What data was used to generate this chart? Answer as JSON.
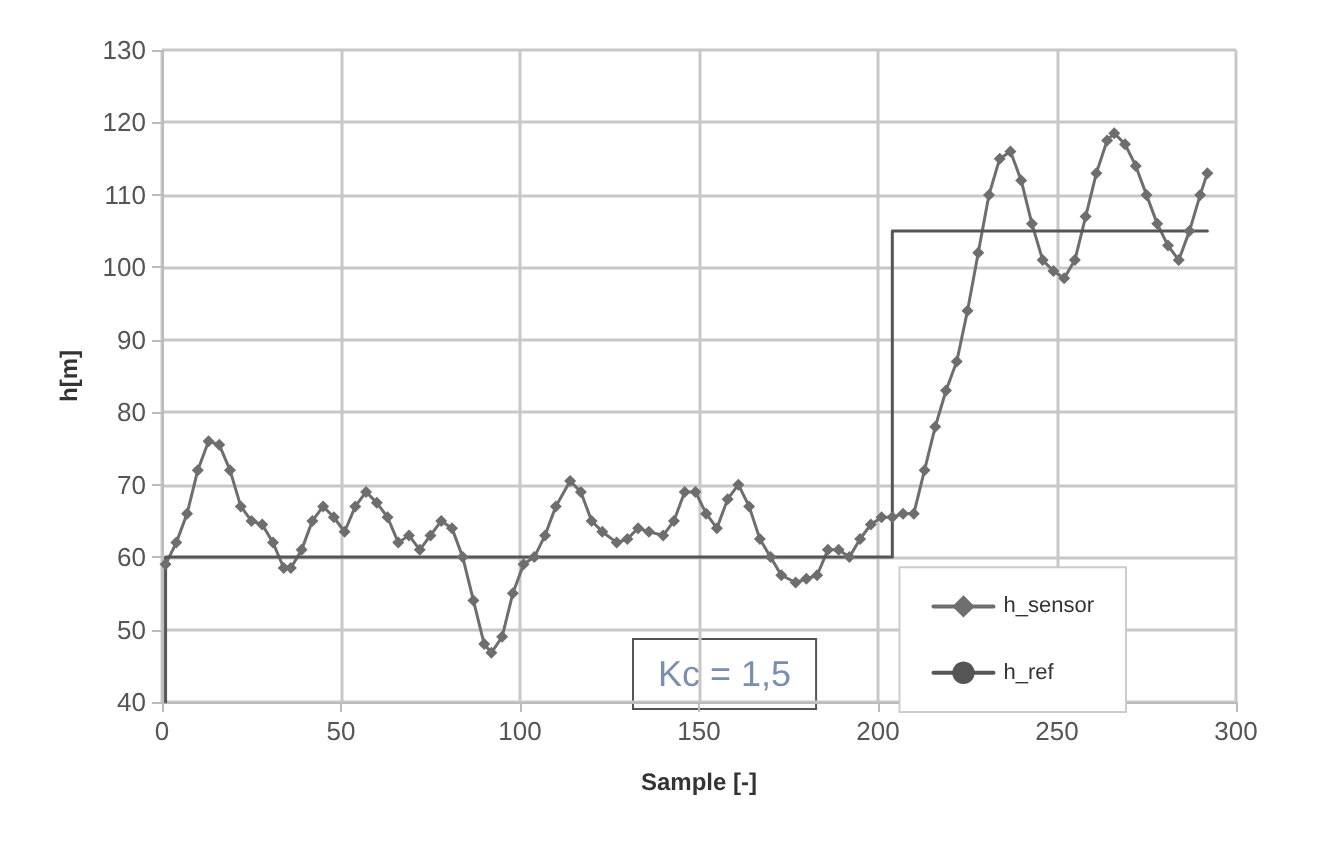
{
  "chart_data": {
    "type": "line",
    "xlabel": "Sample [-]",
    "ylabel": "h[m]",
    "xlim": [
      0,
      300
    ],
    "xticks": [
      0,
      50,
      100,
      150,
      200,
      250,
      300
    ],
    "ylim": [
      40,
      130
    ],
    "yticks": [
      40,
      50,
      60,
      70,
      80,
      90,
      100,
      110,
      120,
      130
    ],
    "grid": true,
    "legend": "bottom right",
    "marker": "diamond",
    "line_style": "solid",
    "annotations": [
      "Kc = 1,5"
    ],
    "series": [
      {
        "name": "h_sensor",
        "color": "#6e6e6e",
        "x": [
          1,
          4,
          7,
          10,
          13,
          16,
          19,
          22,
          25,
          28,
          31,
          34,
          36,
          39,
          42,
          45,
          48,
          51,
          54,
          57,
          60,
          63,
          66,
          69,
          72,
          75,
          78,
          81,
          84,
          87,
          90,
          92,
          95,
          98,
          101,
          104,
          107,
          110,
          114,
          117,
          120,
          123,
          127,
          130,
          133,
          136,
          140,
          143,
          146,
          149,
          152,
          155,
          158,
          161,
          164,
          167,
          170,
          173,
          177,
          180,
          183,
          186,
          189,
          192,
          195,
          198,
          201,
          204,
          207,
          210,
          213,
          216,
          219,
          222,
          225,
          228,
          231,
          234,
          237,
          240,
          243,
          246,
          249,
          252,
          255,
          258,
          261,
          264,
          266,
          269,
          272,
          275,
          278,
          281,
          284,
          287,
          290,
          292
        ],
        "values": [
          59,
          62,
          66,
          72,
          76,
          75.5,
          72,
          67,
          65,
          64.5,
          62,
          58.5,
          58.5,
          61,
          65,
          67,
          65.5,
          63.5,
          67,
          69,
          67.5,
          65.5,
          62,
          63,
          61,
          63,
          65,
          64,
          60,
          54,
          48,
          46.8,
          49,
          55,
          59,
          60,
          63,
          67,
          70.5,
          69,
          65,
          63.5,
          62,
          62.5,
          64,
          63.5,
          63,
          65,
          69,
          69,
          66,
          64,
          68,
          70,
          67,
          62.5,
          60,
          57.5,
          56.5,
          57,
          57.5,
          61,
          61,
          60,
          62.5,
          64.5,
          65.5,
          65.5,
          66,
          66,
          72,
          78,
          83,
          87,
          94,
          102,
          110,
          115,
          116,
          112,
          106,
          101,
          99.5,
          98.5,
          101,
          107,
          113,
          117.5,
          118.5,
          117,
          114,
          110,
          106,
          103,
          101,
          105,
          110,
          113
        ]
      },
      {
        "name": "h_ref",
        "color": "#555555",
        "marker": "none",
        "x": [
          1,
          1,
          204,
          204,
          292
        ],
        "values": [
          40,
          60,
          60,
          105,
          105
        ]
      }
    ]
  }
}
